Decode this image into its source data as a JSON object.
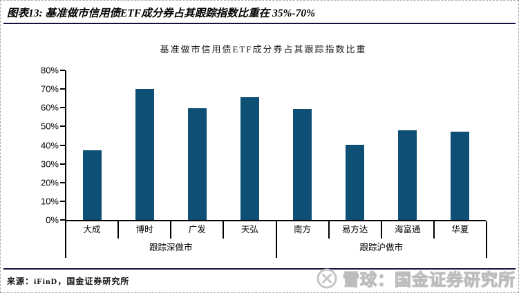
{
  "header": {
    "title": "图表13:  基准做市信用债ETF成分券占其跟踪指数比重在 35%-70%"
  },
  "chart_data": {
    "type": "bar",
    "title": "基准做市信用债ETF成分券占其跟踪指数比重",
    "categories": [
      "大成",
      "博时",
      "广发",
      "天弘",
      "南方",
      "易方达",
      "海富通",
      "华夏"
    ],
    "values": [
      37.3,
      70,
      59.8,
      65.5,
      59.5,
      40.2,
      48,
      47.2
    ],
    "groups": [
      {
        "label": "跟踪深做市",
        "span": 4
      },
      {
        "label": "跟踪沪做市",
        "span": 4
      }
    ],
    "ylim": [
      0,
      80
    ],
    "ytick_step": 10,
    "ytick_suffix": "%",
    "bar_color": "#0d4f75",
    "axis_color": "#000000",
    "grid": false,
    "legend": false,
    "xlabel": "",
    "ylabel": ""
  },
  "footer": {
    "source": "来源：iFinD，国金证券研究所"
  },
  "watermark": {
    "icon": "xueqiu-logo-icon",
    "text": "雪球：国金证券研究所",
    "color": "#c9c9c9"
  }
}
